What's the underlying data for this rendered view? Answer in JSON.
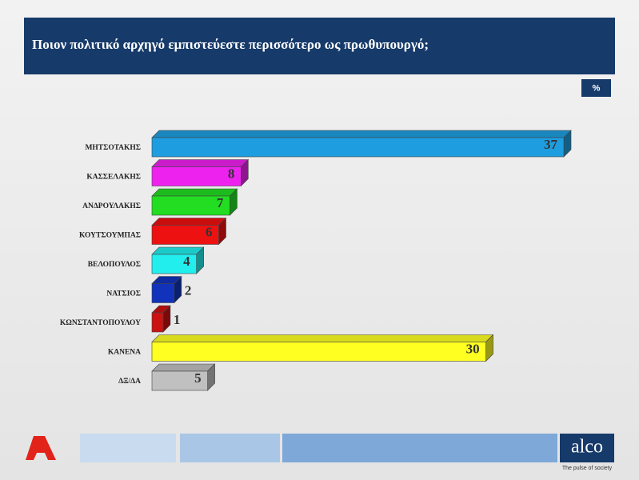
{
  "chart_data": {
    "type": "bar3d",
    "title": "Ποιον πολιτικό αρχηγό εμπιστεύεστε περισσότερο ως πρωθυπουργό;",
    "badge": "%",
    "categories": [
      "ΜΗΤΣΟΤΑΚΗΣ",
      "ΚΑΣΣΕΛΑΚΗΣ",
      "ΑΝΔΡΟΥΛΑΚΗΣ",
      "ΚΟΥΤΣΟΥΜΠΑΣ",
      "ΒΕΛΟΠΟΥΛΟΣ",
      "ΝΑΤΣΙΟΣ",
      "ΚΩΝΣΤΑΝΤΟΠΟΥΛΟΥ",
      "ΚΑΝΕΝΑ",
      "ΔΞ/ΔΑ"
    ],
    "values": [
      37,
      8,
      7,
      6,
      4,
      2,
      1,
      30,
      5
    ],
    "colors": [
      "#1e9ee0",
      "#ee22ee",
      "#22dd22",
      "#ee1111",
      "#22eeee",
      "#1133bb",
      "#cc1111",
      "#ffff22",
      "#c0c0c0"
    ],
    "brand": "alco",
    "tagline": "The pulse of society"
  }
}
